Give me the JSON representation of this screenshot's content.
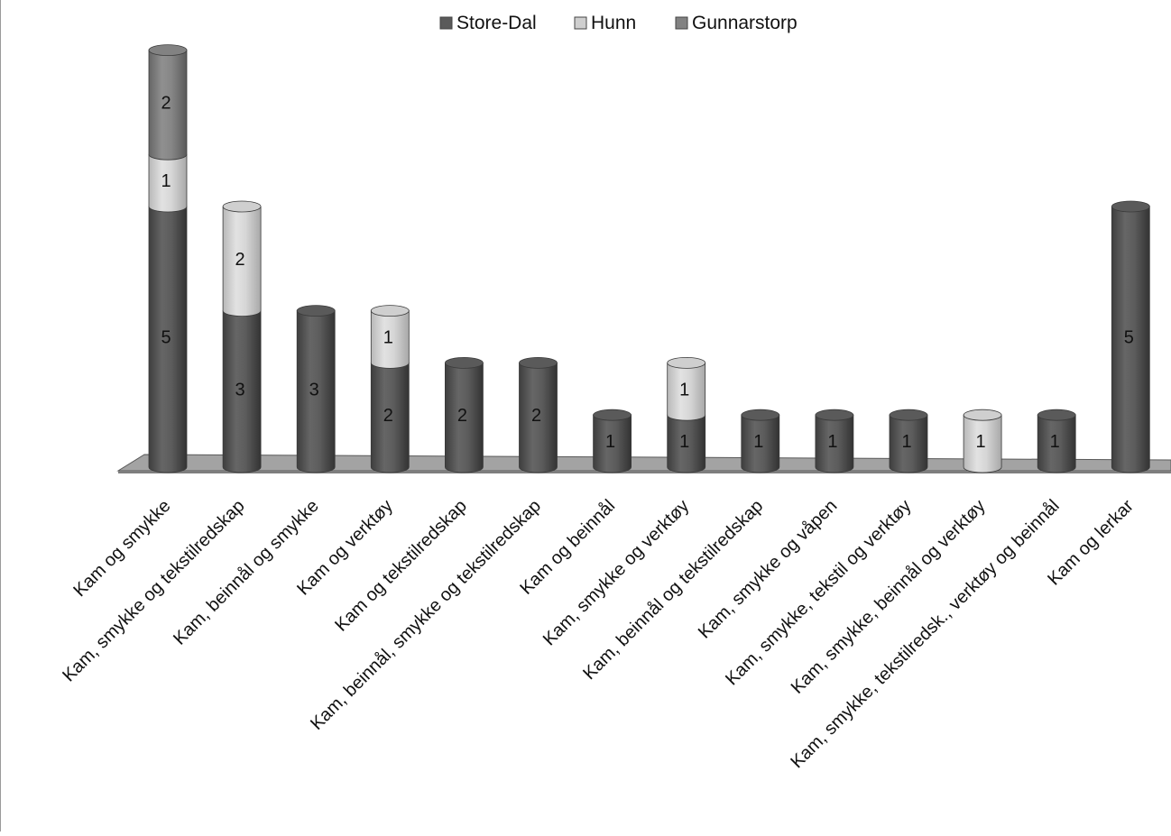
{
  "chart_data": {
    "type": "bar",
    "stacked": true,
    "style": "3d-cylinder",
    "title": "",
    "xlabel": "",
    "ylabel": "",
    "ylim": [
      0,
      8
    ],
    "grid": false,
    "legend_position": "top",
    "categories": [
      "Kam og smykke",
      "Kam, smykke og tekstilredskap",
      "Kam, beinnål og smykke",
      "Kam og verktøy",
      "Kam og tekstilredskap",
      "Kam, beinnål, smykke og tekstilredskap",
      "Kam og beinnål",
      "Kam, smykke og verktøy",
      "Kam, beinnål og tekstilredskap",
      "Kam, smykke og våpen",
      "Kam, smykke, tekstil og verktøy",
      "Kam, smykke, beinnål og verktøy",
      "Kam, smykke, tekstilredsk., verktøy og beinnål",
      "Kam og lerkar"
    ],
    "series": [
      {
        "name": "Store-Dal",
        "color": "#5a5a5a",
        "values": [
          5,
          3,
          3,
          2,
          2,
          2,
          1,
          1,
          1,
          1,
          1,
          0,
          1,
          5
        ],
        "labels": [
          "5",
          "3",
          "3",
          "2",
          "2",
          "2",
          "1",
          "1",
          "1",
          "1",
          "1",
          "",
          "1",
          "5"
        ]
      },
      {
        "name": "Hunn",
        "color": "#cfcfcf",
        "values": [
          1,
          2,
          0,
          1,
          0,
          0,
          0,
          1,
          0,
          0,
          0,
          1,
          0,
          0
        ],
        "labels": [
          "1",
          "2",
          "",
          "1",
          "",
          "",
          "",
          "1",
          "",
          "",
          "",
          "1",
          "",
          ""
        ]
      },
      {
        "name": "Gunnarstorp",
        "color": "#828282",
        "values": [
          2,
          0,
          0,
          0,
          0,
          0,
          0,
          0,
          0,
          0,
          0,
          0,
          0,
          0
        ],
        "labels": [
          "2",
          "",
          "",
          "",
          "",
          "",
          "",
          "",
          "",
          "",
          "",
          "",
          "",
          ""
        ]
      }
    ]
  }
}
